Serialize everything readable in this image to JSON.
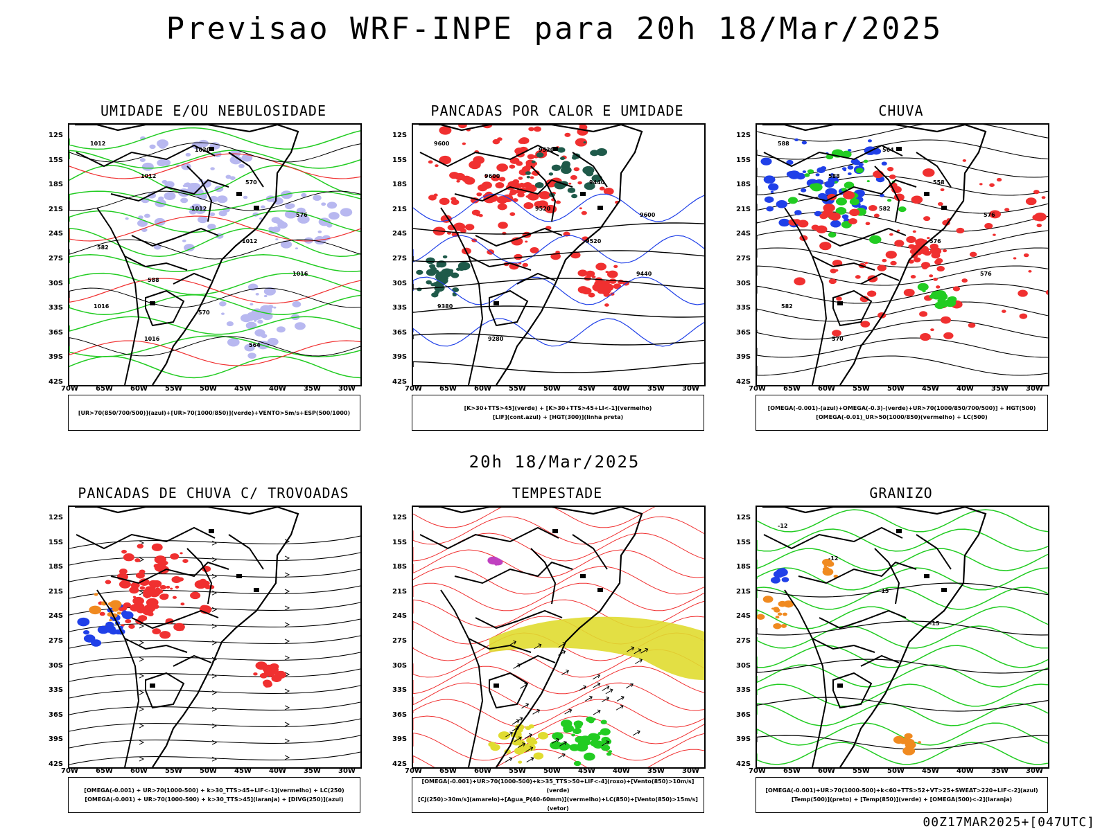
{
  "header": {
    "title": "Previsao WRF-INPE  para 20h 18/Mar/2025"
  },
  "mid_label": "20h 18/Mar/2025",
  "footer": "00Z17MAR2025+[047UTC]",
  "axes": {
    "lat_labels": [
      "12S",
      "15S",
      "18S",
      "21S",
      "24S",
      "27S",
      "30S",
      "33S",
      "36S",
      "39S",
      "42S"
    ],
    "lon_labels": [
      "70W",
      "65W",
      "60W",
      "55W",
      "50W",
      "45W",
      "40W",
      "35W",
      "30W"
    ]
  },
  "panels": [
    {
      "title": "UMIDADE E/OU NEBULOSIDADE",
      "legend": [
        "[UR>70(850/700/500)](azul)+[UR>70(1000/850)](verde)+VENTO>5m/s+ESP(500/1000)"
      ]
    },
    {
      "title": "PANCADAS POR CALOR E UMIDADE",
      "legend": [
        "[K>30+TTS>45](verde) + [K>30+TTS>45+LI<-1](vermelho)",
        "[LIF](cont.azul) + [HGT(300)](linha preta)"
      ]
    },
    {
      "title": "CHUVA",
      "legend": [
        "[OMEGA(-0.001)-(azul)+OMEGA(-0.3)-(verde)+UR>70(1000/850/700/500)] + HGT(500)",
        "[OMEGA(-0.01)_UR>50(1000/850)(vermelho) + LC(500)"
      ]
    },
    {
      "title": "PANCADAS DE CHUVA C/ TROVOADAS",
      "legend": [
        "[OMEGA(-0.001) + UR>70(1000-500) + k>30_TTS>45+LIF<-1](vermelho) + LC(250)",
        "[OMEGA(-0.001) + UR>70(1000-500) + k>30_TTS>45](laranja) + [DIVG(250)](azul)"
      ]
    },
    {
      "title": "TEMPESTADE",
      "legend": [
        "[OMEGA(-0.001)+UR>70(1000-500)+k>35_TTS>50+LIF<-4](roxo)+[Vento(850)>10m/s](verde)",
        "[CJ(250)>30m/s](amarelo)+[Agua_P(40-60mm)](vermelho)+LC(850)+[Vento(850)>15m/s](vetor)"
      ]
    },
    {
      "title": "GRANIZO",
      "legend": [
        "[OMEGA(-0.001)+UR>70(1000-500)+k<60+TTS>52+VT>25+SWEAT>220+LIF<-2](azul)",
        "[Temp(500)](preto) + [Temp(850)](verde) + [OMEGA(500)<-2](laranja)"
      ]
    }
  ],
  "contour_labels": {
    "umidade": [
      "1012",
      "1012",
      "1012",
      "1012",
      "1016",
      "1016",
      "1016",
      "1020",
      "570",
      "576",
      "582",
      "588",
      "570",
      "564"
    ],
    "pancadas": [
      "9600",
      "9600",
      "9520",
      "9520",
      "9440",
      "9380",
      "9280",
      "9520",
      "9440",
      "9600"
    ],
    "chuva": [
      "588",
      "588",
      "582",
      "576",
      "576",
      "582",
      "570",
      "564",
      "558",
      "576"
    ],
    "granizo": [
      "-12",
      "-12",
      "-15",
      "-15"
    ]
  },
  "colors": {
    "blue": "#2040e8",
    "green": "#22cc22",
    "red": "#f03030",
    "teal": "#1f5a4a",
    "yellow": "#e0dc30",
    "orange": "#f08a20",
    "lavender": "#b8b8f0",
    "purple": "#c040c0"
  }
}
